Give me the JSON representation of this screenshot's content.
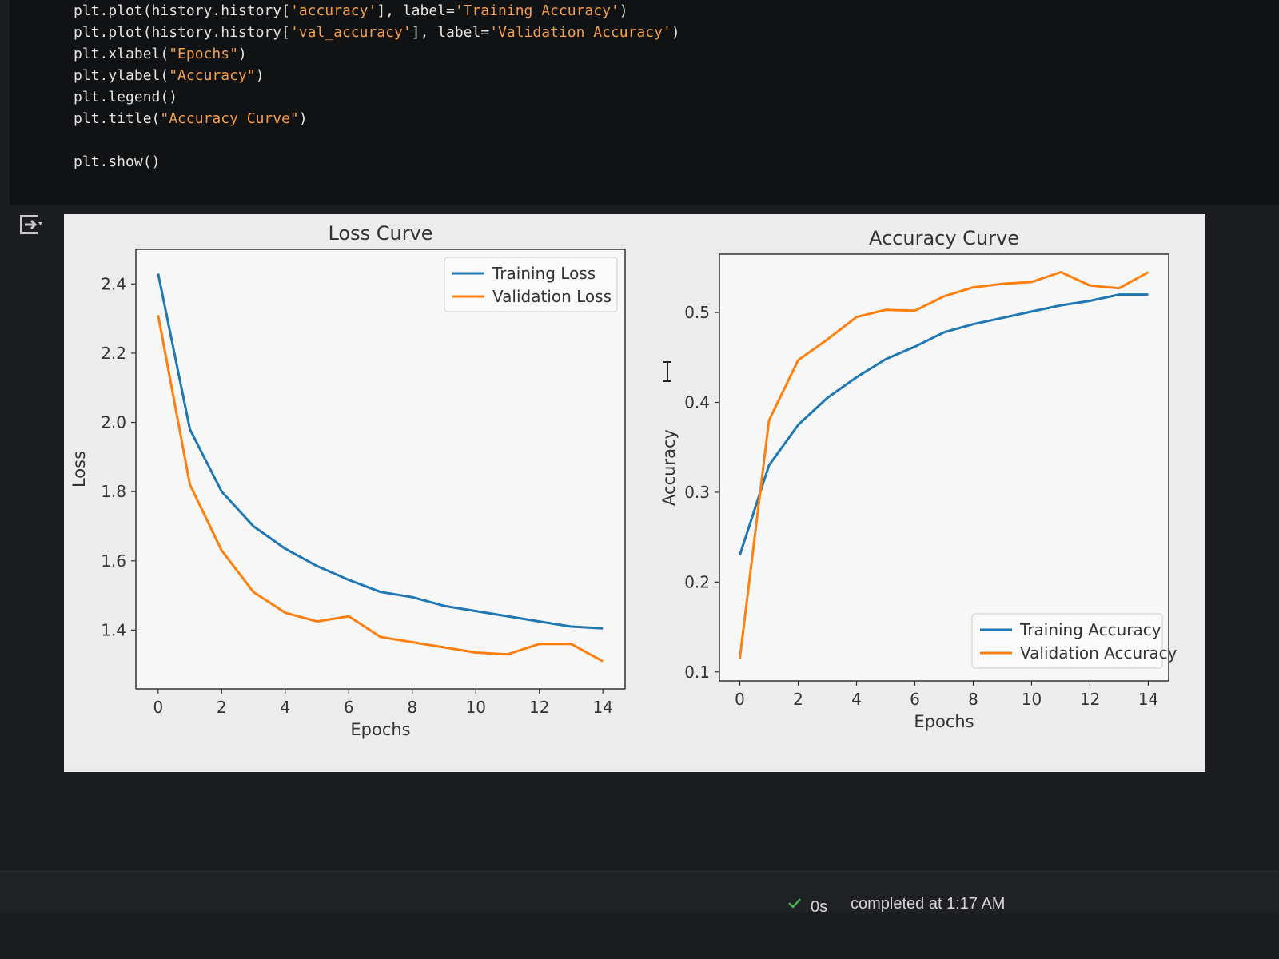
{
  "code_lines": [
    {
      "pre": "plt.plot(history.history[",
      "str": "'accuracy'",
      "mid": "], label=",
      "str2": "'Training Accuracy'",
      "post": ")"
    },
    {
      "pre": "plt.plot(history.history[",
      "str": "'val_accuracy'",
      "mid": "], label=",
      "str2": "'Validation Accuracy'",
      "post": ")"
    },
    {
      "pre": "plt.xlabel(",
      "str": "\"Epochs\"",
      "mid": "",
      "str2": "",
      "post": ")"
    },
    {
      "pre": "plt.ylabel(",
      "str": "\"Accuracy\"",
      "mid": "",
      "str2": "",
      "post": ")"
    },
    {
      "pre": "plt.legend(",
      "str": "",
      "mid": "",
      "str2": "",
      "post": ")"
    },
    {
      "pre": "plt.title(",
      "str": "\"Accuracy Curve\"",
      "mid": "",
      "str2": "",
      "post": ")"
    },
    {
      "blank": true
    },
    {
      "pre": "plt.show(",
      "str": "",
      "mid": "",
      "str2": "",
      "post": ")"
    }
  ],
  "output": {
    "icon": "output-toggle-icon"
  },
  "status": {
    "check_icon": "check-icon",
    "elapsed": "0s",
    "completed": "completed at 1:17 AM"
  },
  "colors": {
    "training": "#1f77b4",
    "validation": "#ff7f0e"
  },
  "chart_data": [
    {
      "type": "line",
      "title": "Loss Curve",
      "xlabel": "Epochs",
      "ylabel": "Loss",
      "xlim": [
        -0.7,
        14.7
      ],
      "ylim": [
        1.23,
        2.5
      ],
      "xticks": [
        0,
        2,
        4,
        6,
        8,
        10,
        12,
        14
      ],
      "yticks": [
        1.4,
        1.6,
        1.8,
        2.0,
        2.2,
        2.4
      ],
      "ytick_labels": [
        "1.4",
        "1.6",
        "1.8",
        "2.0",
        "2.2",
        "2.4"
      ],
      "legend": "upper right",
      "x": [
        0,
        1,
        2,
        3,
        4,
        5,
        6,
        7,
        8,
        9,
        10,
        11,
        12,
        13,
        14
      ],
      "series": [
        {
          "name": "Training Loss",
          "values": [
            2.43,
            1.98,
            1.8,
            1.7,
            1.635,
            1.585,
            1.545,
            1.51,
            1.495,
            1.47,
            1.455,
            1.44,
            1.425,
            1.41,
            1.405
          ]
        },
        {
          "name": "Validation Loss",
          "values": [
            2.31,
            1.82,
            1.63,
            1.51,
            1.45,
            1.425,
            1.44,
            1.38,
            1.365,
            1.35,
            1.335,
            1.33,
            1.36,
            1.36,
            1.31
          ]
        }
      ]
    },
    {
      "type": "line",
      "title": "Accuracy Curve",
      "xlabel": "Epochs",
      "ylabel": "Accuracy",
      "xlim": [
        -0.7,
        14.7
      ],
      "ylim": [
        0.09,
        0.565
      ],
      "xticks": [
        0,
        2,
        4,
        6,
        8,
        10,
        12,
        14
      ],
      "yticks": [
        0.1,
        0.2,
        0.3,
        0.4,
        0.5
      ],
      "ytick_labels": [
        "0.1",
        "0.2",
        "0.3",
        "0.4",
        "0.5"
      ],
      "legend": "lower right",
      "x": [
        0,
        1,
        2,
        3,
        4,
        5,
        6,
        7,
        8,
        9,
        10,
        11,
        12,
        13,
        14
      ],
      "series": [
        {
          "name": "Training Accuracy",
          "values": [
            0.23,
            0.33,
            0.375,
            0.405,
            0.428,
            0.448,
            0.462,
            0.478,
            0.487,
            0.494,
            0.501,
            0.508,
            0.513,
            0.52,
            0.52
          ]
        },
        {
          "name": "Validation Accuracy",
          "values": [
            0.115,
            0.38,
            0.447,
            0.47,
            0.495,
            0.503,
            0.502,
            0.518,
            0.528,
            0.532,
            0.534,
            0.545,
            0.53,
            0.527,
            0.545
          ]
        }
      ]
    }
  ]
}
